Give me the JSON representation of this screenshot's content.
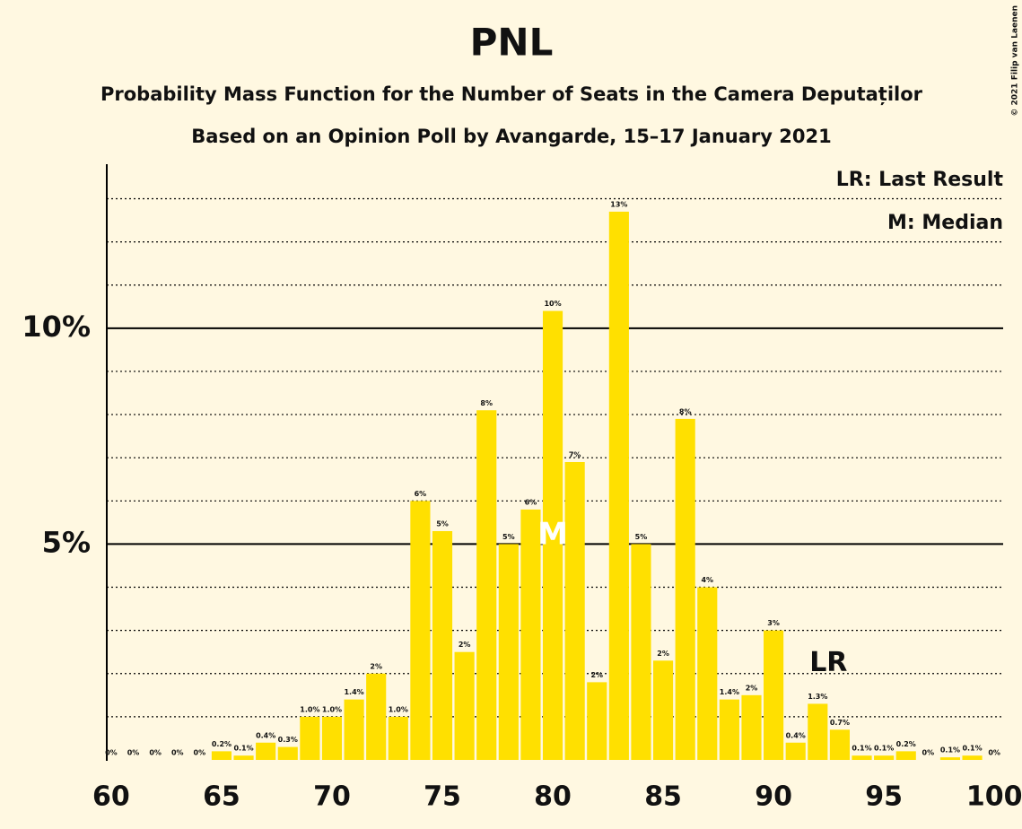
{
  "chart_data": {
    "type": "bar",
    "title": "PNL",
    "subtitle": "Probability Mass Function for the Number of Seats in the Camera Deputaților",
    "subtitle2": "Based on an Opinion Poll by Avangarde, 15–17 January 2021",
    "copyright": "© 2021 Filip van Laenen",
    "legend": [
      "LR: Last Result",
      "M: Median"
    ],
    "color": "#ffe000",
    "x": [
      60,
      61,
      62,
      63,
      64,
      65,
      66,
      67,
      68,
      69,
      70,
      71,
      72,
      73,
      74,
      75,
      76,
      77,
      78,
      79,
      80,
      81,
      82,
      83,
      84,
      85,
      86,
      87,
      88,
      89,
      90,
      91,
      92,
      93,
      94,
      95,
      96,
      97,
      98,
      99,
      100
    ],
    "values": [
      0,
      0,
      0,
      0,
      0,
      0.2,
      0.1,
      0.4,
      0.3,
      1.0,
      1.0,
      1.4,
      2.0,
      1.0,
      6.0,
      5.3,
      2.5,
      8.1,
      5.0,
      5.8,
      10.4,
      6.9,
      1.8,
      12.7,
      5.0,
      2.3,
      7.9,
      4.0,
      1.4,
      1.5,
      3.0,
      0.4,
      1.3,
      0.7,
      0.1,
      0.1,
      0.2,
      0,
      0.06,
      0.1,
      0
    ],
    "value_labels": [
      "0%",
      "0%",
      "0%",
      "0%",
      "0%",
      "0.2%",
      "0.1%",
      "0.4%",
      "0.3%",
      "1.0%",
      "1.0%",
      "1.4%",
      "2%",
      "1.0%",
      "6%",
      "5%",
      "2%",
      "8%",
      "5%",
      "6%",
      "10%",
      "7%",
      "2%",
      "13%",
      "5%",
      "2%",
      "8%",
      "4%",
      "1.4%",
      "2%",
      "3%",
      "0.4%",
      "1.3%",
      "0.7%",
      "0.1%",
      "0.1%",
      "0.2%",
      "0%",
      "0.1%",
      "0.1%",
      "0%"
    ],
    "xlim": [
      59.8,
      100.4
    ],
    "xticks": [
      60,
      65,
      70,
      75,
      80,
      85,
      90,
      95,
      100
    ],
    "ylim": [
      0,
      13.8
    ],
    "yticks": [
      {
        "value": 5,
        "label": "5%"
      },
      {
        "value": 10,
        "label": "10%"
      }
    ],
    "minor_gridlines": [
      1,
      2,
      3,
      4,
      6,
      7,
      8,
      9,
      11,
      12,
      13
    ],
    "annotations": {
      "median": {
        "x": 80,
        "label": "M"
      },
      "last_result": {
        "x": 92,
        "label": "LR"
      }
    }
  }
}
